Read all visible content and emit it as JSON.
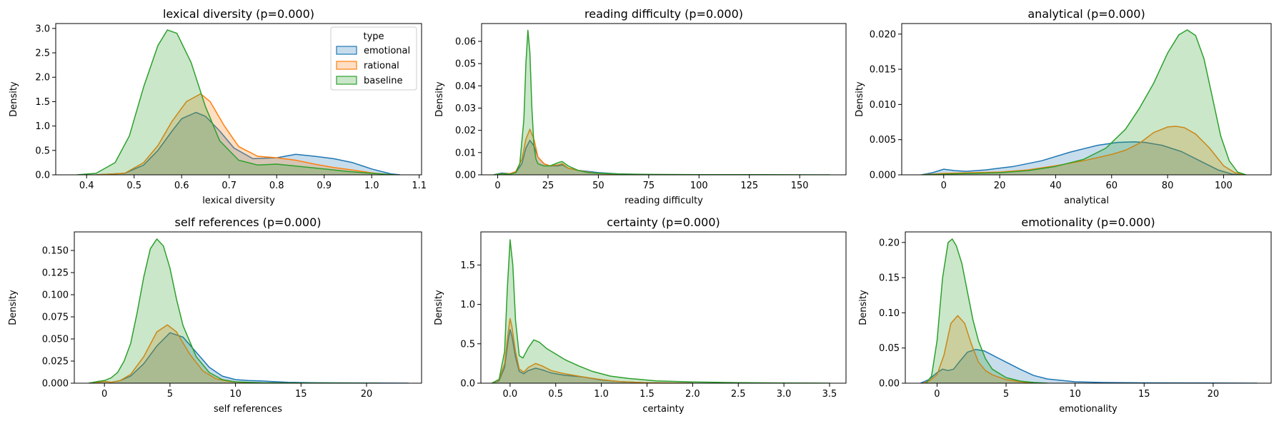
{
  "colors": {
    "emotional": "#1f77b4",
    "rational": "#ff7f0e",
    "baseline": "#2ca02c"
  },
  "legend": {
    "title": "type",
    "entries": [
      "emotional",
      "rational",
      "baseline"
    ],
    "placement": "upper-right of first panel"
  },
  "chart_data": [
    {
      "type": "area",
      "title": "lexical diversity (p=0.000)",
      "xlabel": "lexical diversity",
      "ylabel": "Density",
      "xlim": [
        0.335,
        1.105
      ],
      "ylim": [
        0,
        3.1
      ],
      "xticks": [
        0.4,
        0.5,
        0.6,
        0.7,
        0.8,
        0.9,
        1.0,
        1.1
      ],
      "xtick_labels": [
        "0.4",
        "0.5",
        "0.6",
        "0.7",
        "0.8",
        "0.9",
        "1.0",
        "1.1"
      ],
      "yticks": [
        0,
        0.5,
        1.0,
        1.5,
        2.0,
        2.5,
        3.0
      ],
      "ytick_labels": [
        "0.0",
        "0.5",
        "1.0",
        "1.5",
        "2.0",
        "2.5",
        "3.0"
      ],
      "series": [
        {
          "name": "emotional",
          "x": [
            0.42,
            0.48,
            0.52,
            0.55,
            0.58,
            0.6,
            0.63,
            0.65,
            0.68,
            0.71,
            0.75,
            0.8,
            0.84,
            0.88,
            0.92,
            0.96,
            1.0,
            1.04,
            1.06
          ],
          "y": [
            0,
            0.03,
            0.2,
            0.5,
            0.9,
            1.15,
            1.28,
            1.2,
            0.9,
            0.55,
            0.33,
            0.35,
            0.42,
            0.38,
            0.33,
            0.25,
            0.12,
            0.02,
            0
          ]
        },
        {
          "name": "rational",
          "x": [
            0.42,
            0.48,
            0.52,
            0.55,
            0.58,
            0.61,
            0.64,
            0.66,
            0.69,
            0.72,
            0.76,
            0.8,
            0.84,
            0.88,
            0.92,
            0.96,
            1.0,
            1.04
          ],
          "y": [
            0,
            0.03,
            0.25,
            0.6,
            1.1,
            1.5,
            1.66,
            1.5,
            1.0,
            0.58,
            0.38,
            0.35,
            0.3,
            0.22,
            0.15,
            0.1,
            0.04,
            0
          ]
        },
        {
          "name": "baseline",
          "x": [
            0.38,
            0.42,
            0.46,
            0.49,
            0.52,
            0.55,
            0.57,
            0.59,
            0.62,
            0.65,
            0.68,
            0.72,
            0.76,
            0.8,
            0.85,
            0.9,
            0.95,
            1.0,
            1.05
          ],
          "y": [
            0,
            0.03,
            0.25,
            0.8,
            1.8,
            2.65,
            2.97,
            2.9,
            2.3,
            1.4,
            0.7,
            0.3,
            0.2,
            0.22,
            0.17,
            0.12,
            0.07,
            0.03,
            0
          ]
        }
      ]
    },
    {
      "type": "area",
      "title": "reading difficulty (p=0.000)",
      "xlabel": "reading difficulty",
      "ylabel": "Density",
      "xlim": [
        -8,
        173
      ],
      "ylim": [
        0,
        0.068
      ],
      "xticks": [
        0,
        25,
        50,
        75,
        100,
        125,
        150
      ],
      "xtick_labels": [
        "0",
        "25",
        "50",
        "75",
        "100",
        "125",
        "150"
      ],
      "yticks": [
        0,
        0.01,
        0.02,
        0.03,
        0.04,
        0.05,
        0.06
      ],
      "ytick_labels": [
        "0.00",
        "0.01",
        "0.02",
        "0.03",
        "0.04",
        "0.05",
        "0.06"
      ],
      "series": [
        {
          "name": "emotional",
          "x": [
            -2,
            2,
            6,
            9,
            12,
            14,
            16,
            18,
            20,
            23,
            26,
            30,
            32,
            35,
            40,
            45,
            50,
            60,
            75,
            90
          ],
          "y": [
            0,
            0.0008,
            0.0005,
            0.001,
            0.005,
            0.012,
            0.0155,
            0.013,
            0.008,
            0.005,
            0.004,
            0.004,
            0.0045,
            0.003,
            0.002,
            0.0015,
            0.001,
            0.0004,
            0.0001,
            0
          ]
        },
        {
          "name": "rational",
          "x": [
            -2,
            2,
            6,
            9,
            12,
            14,
            16,
            18,
            20,
            23,
            26,
            30,
            32,
            35,
            40,
            45,
            50,
            60,
            75,
            90
          ],
          "y": [
            0,
            0.0005,
            0.0005,
            0.0015,
            0.007,
            0.016,
            0.0205,
            0.016,
            0.008,
            0.005,
            0.004,
            0.0045,
            0.005,
            0.003,
            0.002,
            0.0012,
            0.0006,
            0.0002,
            0.0001,
            0
          ]
        },
        {
          "name": "baseline",
          "x": [
            -2,
            2,
            6,
            9,
            11,
            13,
            14,
            15,
            16,
            17,
            18,
            19,
            20,
            23,
            26,
            30,
            32,
            35,
            40,
            45,
            50,
            60,
            75,
            100,
            130,
            165
          ],
          "y": [
            0,
            0.0005,
            0.0003,
            0.001,
            0.005,
            0.025,
            0.05,
            0.065,
            0.055,
            0.03,
            0.013,
            0.007,
            0.005,
            0.004,
            0.004,
            0.0055,
            0.006,
            0.004,
            0.002,
            0.001,
            0.0007,
            0.0004,
            0.0002,
            0.0001,
            5e-05,
            0
          ]
        }
      ]
    },
    {
      "type": "area",
      "title": "analytical (p=0.000)",
      "xlabel": "analytical",
      "ylabel": "Density",
      "xlim": [
        -15,
        117
      ],
      "ylim": [
        0,
        0.0215
      ],
      "xticks": [
        0,
        20,
        40,
        60,
        80,
        100
      ],
      "xtick_labels": [
        "0",
        "20",
        "40",
        "60",
        "80",
        "100"
      ],
      "yticks": [
        0,
        0.005,
        0.01,
        0.015,
        0.02
      ],
      "ytick_labels": [
        "0.000",
        "0.005",
        "0.010",
        "0.015",
        "0.020"
      ],
      "series": [
        {
          "name": "emotional",
          "x": [
            -8,
            -4,
            0,
            4,
            8,
            15,
            25,
            35,
            45,
            55,
            62,
            68,
            72,
            78,
            85,
            92,
            98,
            103,
            107
          ],
          "y": [
            0,
            0.0003,
            0.0008,
            0.0006,
            0.0005,
            0.0007,
            0.0012,
            0.002,
            0.0032,
            0.0042,
            0.0046,
            0.0047,
            0.0046,
            0.0042,
            0.0033,
            0.0019,
            0.0007,
            0.0001,
            0
          ]
        },
        {
          "name": "rational",
          "x": [
            -8,
            0,
            10,
            20,
            30,
            40,
            50,
            60,
            65,
            70,
            75,
            80,
            83,
            86,
            90,
            95,
            100,
            104,
            108
          ],
          "y": [
            0,
            0.0002,
            0.0003,
            0.0004,
            0.0007,
            0.0013,
            0.002,
            0.0029,
            0.0035,
            0.0045,
            0.006,
            0.0068,
            0.0069,
            0.0067,
            0.0058,
            0.0038,
            0.0013,
            0.0003,
            0
          ]
        },
        {
          "name": "baseline",
          "x": [
            -8,
            0,
            10,
            20,
            30,
            40,
            50,
            58,
            65,
            70,
            75,
            80,
            84,
            87,
            90,
            93,
            96,
            99,
            102,
            105,
            108
          ],
          "y": [
            0,
            0.0001,
            0.0002,
            0.0003,
            0.0006,
            0.0012,
            0.0022,
            0.0038,
            0.0065,
            0.0095,
            0.013,
            0.0173,
            0.0199,
            0.0206,
            0.0198,
            0.0165,
            0.011,
            0.0055,
            0.002,
            0.0004,
            0
          ]
        }
      ]
    },
    {
      "type": "area",
      "title": "self references (p=0.000)",
      "xlabel": "self references",
      "ylabel": "Density",
      "xlim": [
        -2.3,
        24.2
      ],
      "ylim": [
        0,
        0.171
      ],
      "xticks": [
        0,
        5,
        10,
        15,
        20
      ],
      "xtick_labels": [
        "0",
        "5",
        "10",
        "15",
        "20"
      ],
      "yticks": [
        0,
        0.025,
        0.05,
        0.075,
        0.1,
        0.125,
        0.15
      ],
      "ytick_labels": [
        "0.000",
        "0.025",
        "0.050",
        "0.075",
        "0.100",
        "0.125",
        "0.150"
      ],
      "series": [
        {
          "name": "emotional",
          "x": [
            -1.2,
            -0.5,
            0,
            0.5,
            1.2,
            2,
            3,
            4,
            5,
            6,
            7,
            8,
            9,
            10,
            11,
            12,
            14,
            16,
            20,
            23.2
          ],
          "y": [
            0,
            0.001,
            0.002,
            0.001,
            0.003,
            0.008,
            0.022,
            0.042,
            0.057,
            0.052,
            0.035,
            0.018,
            0.008,
            0.004,
            0.003,
            0.0025,
            0.001,
            0.0005,
            0.0002,
            0
          ]
        },
        {
          "name": "rational",
          "x": [
            -1.2,
            -0.5,
            0,
            0.5,
            1.2,
            2,
            3,
            4,
            4.8,
            5.5,
            6.5,
            7.5,
            8.5,
            9.5,
            11,
            13
          ],
          "y": [
            0,
            0.001,
            0.002,
            0.001,
            0.003,
            0.01,
            0.03,
            0.058,
            0.066,
            0.058,
            0.033,
            0.014,
            0.005,
            0.002,
            0.0005,
            0
          ]
        },
        {
          "name": "baseline",
          "x": [
            -1.2,
            -0.5,
            0,
            0.5,
            1,
            1.5,
            2,
            2.5,
            3,
            3.5,
            4,
            4.5,
            5,
            5.5,
            6,
            7,
            8,
            9,
            10,
            12,
            15,
            18,
            21
          ],
          "y": [
            0,
            0.002,
            0.003,
            0.006,
            0.012,
            0.025,
            0.045,
            0.08,
            0.12,
            0.152,
            0.163,
            0.155,
            0.13,
            0.095,
            0.065,
            0.03,
            0.012,
            0.004,
            0.0015,
            0.0005,
            0.0002,
            0.0001,
            0
          ]
        }
      ]
    },
    {
      "type": "area",
      "title": "certainty (p=0.000)",
      "xlabel": "certainty",
      "ylabel": "Density",
      "xlim": [
        -0.32,
        3.68
      ],
      "ylim": [
        0,
        1.92
      ],
      "xticks": [
        0.0,
        0.5,
        1.0,
        1.5,
        2.0,
        2.5,
        3.0,
        3.5
      ],
      "xtick_labels": [
        "0.0",
        "0.5",
        "1.0",
        "1.5",
        "2.0",
        "2.5",
        "3.0",
        "3.5"
      ],
      "yticks": [
        0,
        0.5,
        1.0,
        1.5
      ],
      "ytick_labels": [
        "0.0",
        "0.5",
        "1.0",
        "1.5"
      ],
      "series": [
        {
          "name": "emotional",
          "x": [
            -0.2,
            -0.12,
            -0.06,
            -0.02,
            0.0,
            0.02,
            0.06,
            0.1,
            0.15,
            0.2,
            0.28,
            0.35,
            0.45,
            0.6,
            0.8,
            1.0,
            1.2,
            1.5,
            2.0
          ],
          "y": [
            0,
            0.03,
            0.2,
            0.55,
            0.68,
            0.6,
            0.33,
            0.15,
            0.12,
            0.16,
            0.19,
            0.17,
            0.13,
            0.1,
            0.08,
            0.04,
            0.02,
            0.005,
            0
          ]
        },
        {
          "name": "rational",
          "x": [
            -0.2,
            -0.12,
            -0.06,
            -0.02,
            0.0,
            0.02,
            0.06,
            0.1,
            0.15,
            0.2,
            0.28,
            0.35,
            0.45,
            0.6,
            0.8,
            1.0,
            1.2,
            1.5,
            2.0
          ],
          "y": [
            0,
            0.04,
            0.25,
            0.65,
            0.82,
            0.72,
            0.4,
            0.18,
            0.14,
            0.2,
            0.25,
            0.22,
            0.16,
            0.12,
            0.08,
            0.045,
            0.02,
            0.005,
            0
          ]
        },
        {
          "name": "baseline",
          "x": [
            -0.2,
            -0.12,
            -0.06,
            -0.03,
            0.0,
            0.03,
            0.06,
            0.1,
            0.14,
            0.2,
            0.26,
            0.32,
            0.4,
            0.5,
            0.6,
            0.75,
            0.9,
            1.1,
            1.3,
            1.6,
            2.0,
            2.5,
            3.0,
            3.5
          ],
          "y": [
            0,
            0.05,
            0.4,
            1.2,
            1.82,
            1.5,
            0.8,
            0.35,
            0.32,
            0.45,
            0.55,
            0.52,
            0.44,
            0.37,
            0.3,
            0.22,
            0.15,
            0.09,
            0.06,
            0.03,
            0.015,
            0.006,
            0.003,
            0
          ]
        }
      ]
    },
    {
      "type": "area",
      "title": "emotionality (p=0.000)",
      "xlabel": "emotionality",
      "ylabel": "Density",
      "xlim": [
        -2.3,
        24.2
      ],
      "ylim": [
        0,
        0.215
      ],
      "xticks": [
        0,
        5,
        10,
        15,
        20
      ],
      "xtick_labels": [
        "0",
        "5",
        "10",
        "15",
        "20"
      ],
      "yticks": [
        0,
        0.05,
        0.1,
        0.15,
        0.2
      ],
      "ytick_labels": [
        "0.00",
        "0.05",
        "0.10",
        "0.15",
        "0.20"
      ],
      "series": [
        {
          "name": "emotional",
          "x": [
            -1.2,
            -0.6,
            0,
            0.4,
            0.8,
            1.2,
            1.6,
            2.2,
            2.8,
            3.4,
            4,
            5,
            6,
            7,
            8,
            10,
            12,
            15,
            20,
            23.2
          ],
          "y": [
            0,
            0.005,
            0.015,
            0.02,
            0.018,
            0.02,
            0.03,
            0.044,
            0.048,
            0.046,
            0.04,
            0.03,
            0.02,
            0.011,
            0.006,
            0.002,
            0.001,
            0.0005,
            0.0002,
            0
          ]
        },
        {
          "name": "rational",
          "x": [
            -1,
            -0.5,
            0,
            0.5,
            1,
            1.5,
            2,
            2.5,
            3,
            3.5,
            4,
            5,
            6,
            7
          ],
          "y": [
            0,
            0.004,
            0.012,
            0.04,
            0.085,
            0.096,
            0.085,
            0.055,
            0.03,
            0.018,
            0.012,
            0.005,
            0.002,
            0
          ]
        },
        {
          "name": "baseline",
          "x": [
            -0.8,
            -0.4,
            0,
            0.4,
            0.8,
            1.1,
            1.4,
            1.8,
            2.2,
            2.6,
            3,
            3.5,
            4,
            5,
            6,
            7,
            8
          ],
          "y": [
            0,
            0.01,
            0.06,
            0.15,
            0.2,
            0.205,
            0.195,
            0.17,
            0.13,
            0.09,
            0.06,
            0.035,
            0.02,
            0.008,
            0.003,
            0.001,
            0
          ]
        }
      ]
    }
  ]
}
